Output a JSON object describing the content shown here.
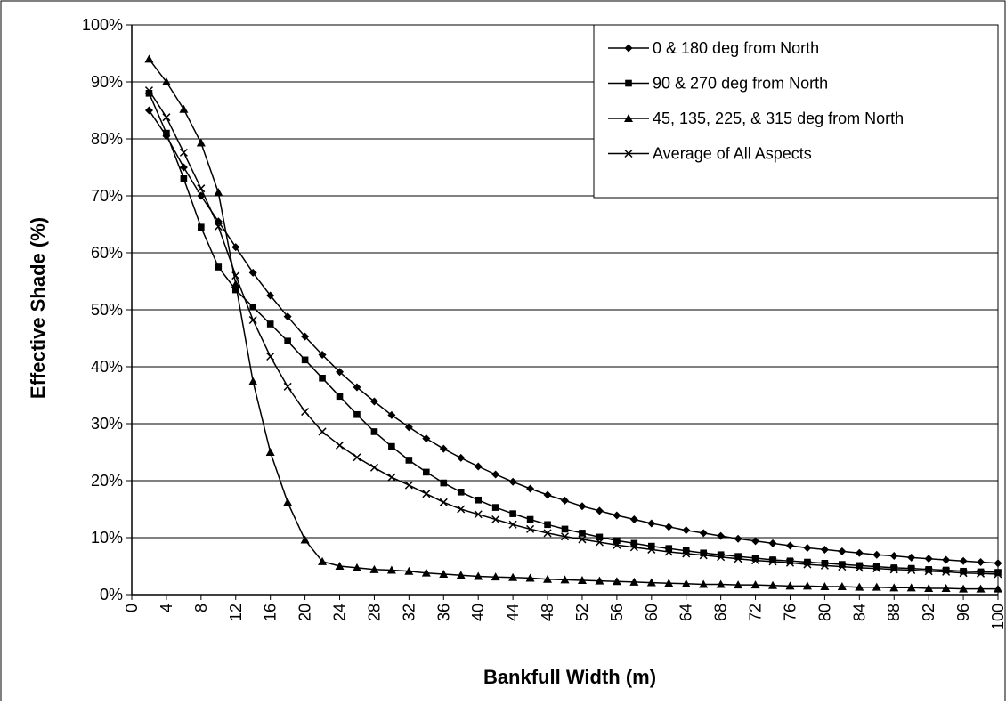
{
  "chart_data": {
    "type": "line",
    "title": "",
    "xlabel": "Bankfull Width (m)",
    "ylabel": "Effective Shade (%)",
    "xlim": [
      0,
      100
    ],
    "ylim": [
      0,
      100
    ],
    "x_ticks": [
      0,
      4,
      8,
      12,
      16,
      20,
      24,
      28,
      32,
      36,
      40,
      44,
      48,
      52,
      56,
      60,
      64,
      68,
      72,
      76,
      80,
      84,
      88,
      92,
      96,
      100
    ],
    "y_ticks": [
      0,
      10,
      20,
      30,
      40,
      50,
      60,
      70,
      80,
      90,
      100
    ],
    "y_tick_suffix": "%",
    "grid": "horizontal",
    "legend_position": "top-right",
    "x": [
      2,
      4,
      6,
      8,
      10,
      12,
      14,
      16,
      18,
      20,
      22,
      24,
      26,
      28,
      30,
      32,
      34,
      36,
      38,
      40,
      42,
      44,
      46,
      48,
      50,
      52,
      54,
      56,
      58,
      60,
      62,
      64,
      66,
      68,
      70,
      72,
      74,
      76,
      78,
      80,
      82,
      84,
      86,
      88,
      90,
      92,
      94,
      96,
      98,
      100
    ],
    "series": [
      {
        "name": "0 & 180 deg from North",
        "marker": "diamond",
        "values": [
          85,
          80.5,
          75,
          70,
          65.5,
          61,
          56.5,
          52.5,
          48.8,
          45.3,
          42.1,
          39.1,
          36.4,
          33.9,
          31.5,
          29.4,
          27.4,
          25.6,
          24,
          22.5,
          21.1,
          19.8,
          18.6,
          17.5,
          16.5,
          15.5,
          14.7,
          13.9,
          13.2,
          12.5,
          11.9,
          11.3,
          10.8,
          10.3,
          9.8,
          9.4,
          9,
          8.6,
          8.2,
          7.9,
          7.6,
          7.3,
          7,
          6.8,
          6.5,
          6.3,
          6.1,
          5.9,
          5.7,
          5.5
        ]
      },
      {
        "name": "90 & 270 deg from North",
        "marker": "square",
        "values": [
          88,
          81,
          73,
          64.5,
          57.5,
          53.5,
          50.5,
          47.5,
          44.5,
          41.2,
          38,
          34.8,
          31.6,
          28.6,
          26,
          23.6,
          21.5,
          19.6,
          18,
          16.6,
          15.3,
          14.2,
          13.2,
          12.3,
          11.5,
          10.8,
          10.1,
          9.5,
          9,
          8.5,
          8.1,
          7.7,
          7.3,
          7,
          6.7,
          6.4,
          6.1,
          5.9,
          5.7,
          5.5,
          5.3,
          5.1,
          4.9,
          4.7,
          4.6,
          4.4,
          4.3,
          4.1,
          4,
          3.9
        ]
      },
      {
        "name": "45, 135, 225, & 315 deg from North",
        "marker": "triangle",
        "values": [
          94,
          90,
          85.2,
          79.3,
          70.6,
          54.5,
          37.4,
          25,
          16.2,
          9.6,
          5.8,
          5,
          4.7,
          4.4,
          4.3,
          4.1,
          3.8,
          3.6,
          3.4,
          3.2,
          3.1,
          3,
          2.9,
          2.7,
          2.6,
          2.5,
          2.4,
          2.3,
          2.2,
          2.1,
          2,
          1.9,
          1.8,
          1.8,
          1.7,
          1.7,
          1.6,
          1.5,
          1.5,
          1.4,
          1.4,
          1.3,
          1.3,
          1.2,
          1.2,
          1.1,
          1.1,
          1,
          1,
          1
        ]
      },
      {
        "name": "Average of All Aspects",
        "marker": "x",
        "values": [
          88.5,
          83.8,
          77.6,
          71.3,
          64.6,
          56,
          48.2,
          41.8,
          36.5,
          32.1,
          28.6,
          26.2,
          24.1,
          22.3,
          20.6,
          19.2,
          17.7,
          16.2,
          15,
          14.1,
          13.2,
          12.3,
          11.5,
          10.8,
          10.2,
          9.7,
          9.2,
          8.7,
          8.3,
          7.9,
          7.5,
          7.2,
          6.9,
          6.6,
          6.3,
          6,
          5.8,
          5.6,
          5.3,
          5.1,
          4.9,
          4.7,
          4.6,
          4.4,
          4.3,
          4.1,
          4,
          3.8,
          3.7,
          3.6
        ]
      }
    ]
  }
}
